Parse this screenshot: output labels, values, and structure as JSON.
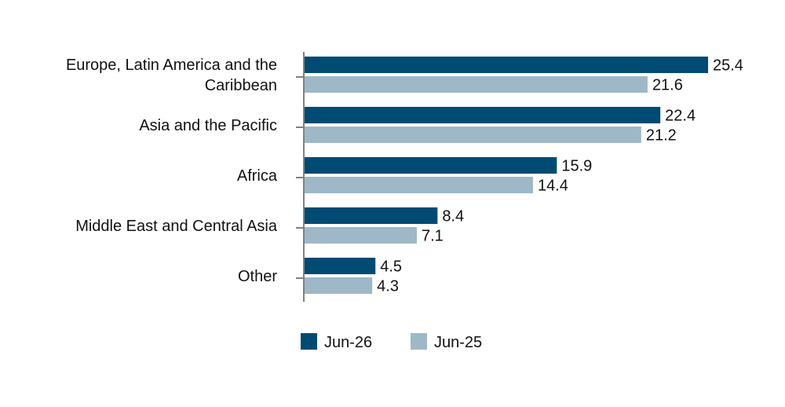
{
  "chart_data": {
    "type": "bar",
    "orientation": "horizontal",
    "categories": [
      [
        "Europe, Latin America and the",
        "Caribbean"
      ],
      [
        "Asia and the Pacific"
      ],
      [
        "Africa"
      ],
      [
        "Middle East and Central Asia"
      ],
      [
        "Other"
      ]
    ],
    "series": [
      {
        "name": "Jun-26",
        "color": "#004b73",
        "values": [
          25.4,
          22.4,
          15.9,
          8.4,
          4.5
        ]
      },
      {
        "name": "Jun-25",
        "color": "#9fb8c8",
        "values": [
          21.6,
          21.2,
          14.4,
          7.1,
          4.3
        ]
      }
    ],
    "xlim": [
      0,
      30
    ],
    "grid": false,
    "legend_position": "bottom"
  }
}
